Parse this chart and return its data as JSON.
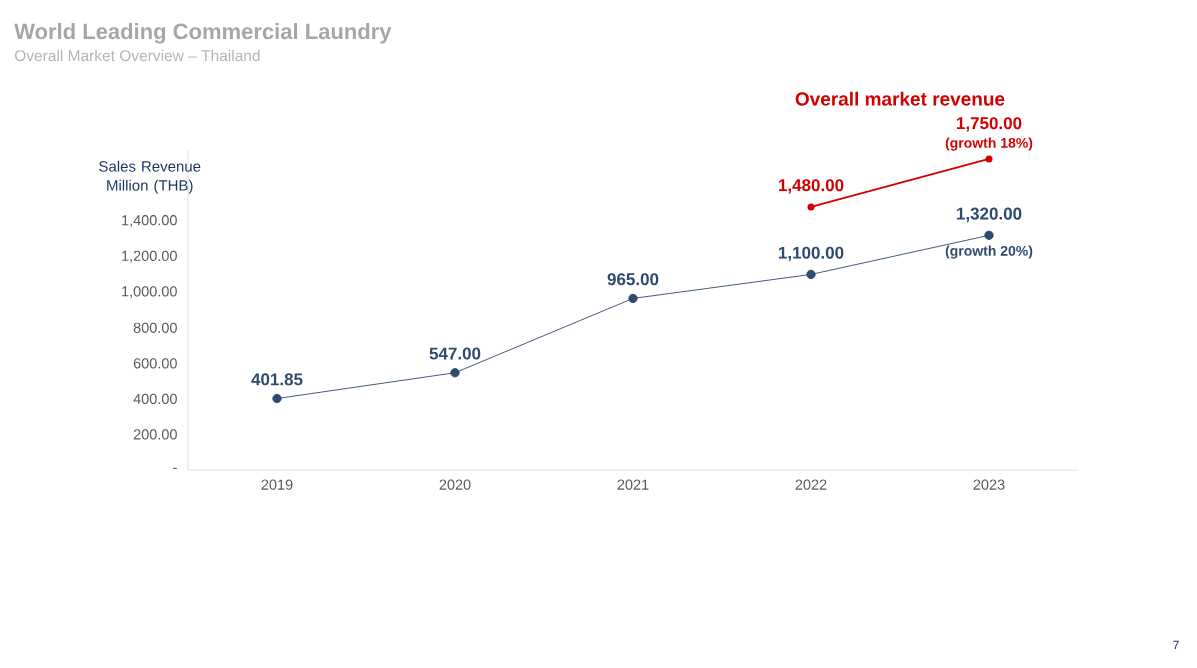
{
  "chart_data": {
    "type": "line",
    "title": "World Leading Commercial Laundry",
    "subtitle": "Overall Market Overview – Thailand",
    "ylabel": "Sales Revenue Million (THB)",
    "categories": [
      "2019",
      "2020",
      "2021",
      "2022",
      "2023"
    ],
    "series": [
      {
        "color": "#2e4a6e",
        "values": [
          401.85,
          547,
          965,
          1100,
          1320
        ],
        "value_labels": [
          "401.85",
          "547.00",
          "965.00",
          "1,100.00",
          "1,320.00"
        ]
      },
      {
        "name": "Overall market revenue",
        "color": "#d40000",
        "values": [
          null,
          null,
          null,
          1480,
          1750
        ],
        "value_labels": [
          null,
          null,
          null,
          "1,480.00",
          "1,750.00"
        ]
      }
    ],
    "ylim": [
      0,
      1800
    ],
    "yticks": [
      {
        "value": 0,
        "label": "-"
      },
      {
        "value": 200,
        "label": "200.00"
      },
      {
        "value": 400,
        "label": "400.00"
      },
      {
        "value": 600,
        "label": "600.00"
      },
      {
        "value": 800,
        "label": "800.00"
      },
      {
        "value": 1000,
        "label": "1,000.00"
      },
      {
        "value": 1200,
        "label": "1,200.00"
      },
      {
        "value": 1400,
        "label": "1,400.00"
      }
    ],
    "marker": "circle",
    "annotations": [
      {
        "text": "(growth 20%)",
        "x": "2023",
        "y": 1320
      },
      {
        "text": "(growth 18%)",
        "x": "2023",
        "y": 1750
      },
      "7"
    ]
  }
}
